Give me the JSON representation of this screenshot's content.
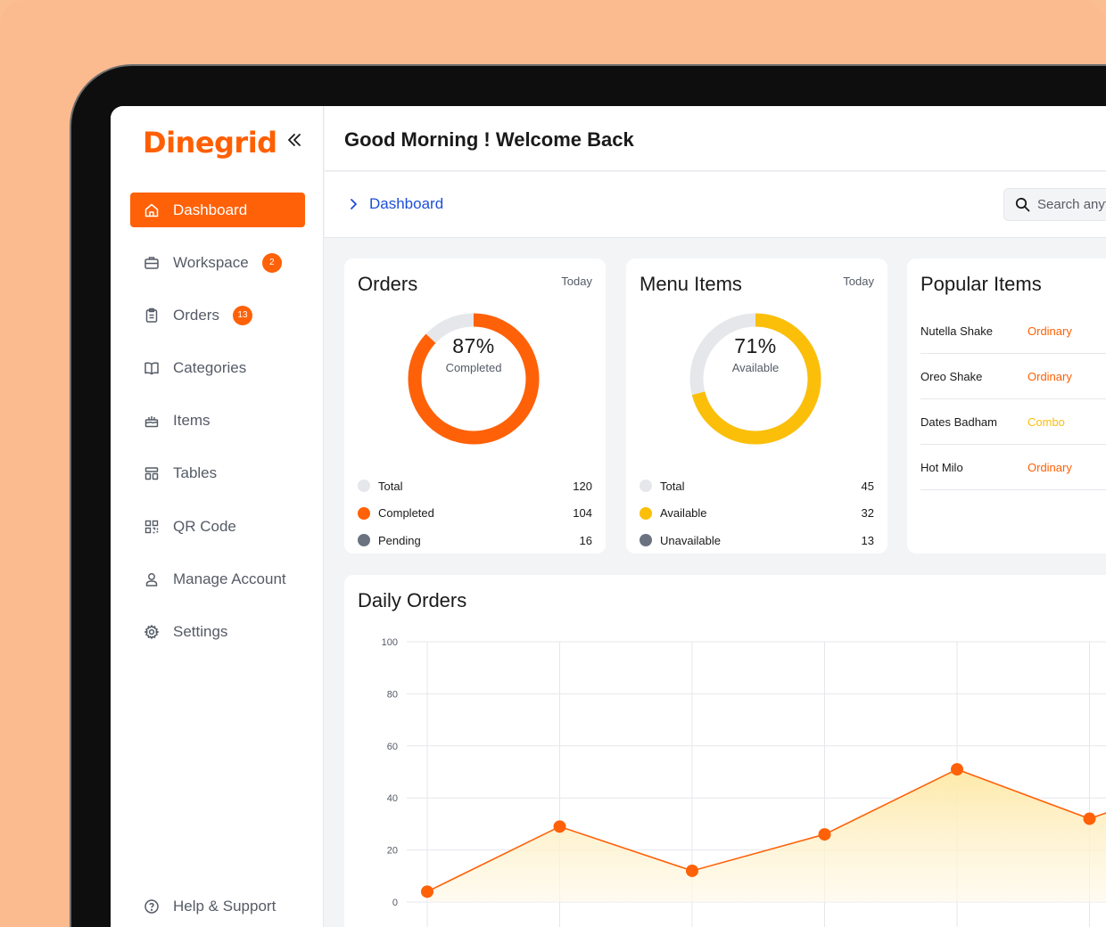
{
  "app": {
    "logo_text": "Dinegrid",
    "brand_color": "#ff6108"
  },
  "sidebar": {
    "items": [
      {
        "label": "Dashboard",
        "icon": "home-icon",
        "active": true
      },
      {
        "label": "Workspace",
        "icon": "briefcase-icon",
        "badge": "2"
      },
      {
        "label": "Orders",
        "icon": "clipboard-icon",
        "badge": "13"
      },
      {
        "label": "Categories",
        "icon": "book-icon"
      },
      {
        "label": "Items",
        "icon": "cake-icon"
      },
      {
        "label": "Tables",
        "icon": "table-icon"
      },
      {
        "label": "QR Code",
        "icon": "qr-code-icon"
      },
      {
        "label": "Manage Account",
        "icon": "user-icon"
      },
      {
        "label": "Settings",
        "icon": "gear-icon"
      }
    ],
    "help_label": "Help & Support"
  },
  "header": {
    "greeting": "Good Morning ! Welcome Back"
  },
  "subbar": {
    "breadcrumb": "Dashboard",
    "search_placeholder": "Search anything"
  },
  "orders_card": {
    "title": "Orders",
    "period": "Today",
    "percent_label": "87%",
    "percent_value": 87,
    "sub_label": "Completed",
    "legend": [
      {
        "label": "Total",
        "value": "120",
        "color": "#e5e7eb"
      },
      {
        "label": "Completed",
        "value": "104",
        "color": "#ff6108"
      },
      {
        "label": "Pending",
        "value": "16",
        "color": "#6b7280"
      }
    ]
  },
  "menu_card": {
    "title": "Menu Items",
    "period": "Today",
    "percent_label": "71%",
    "percent_value": 71,
    "sub_label": "Available",
    "legend": [
      {
        "label": "Total",
        "value": "45",
        "color": "#e5e7eb"
      },
      {
        "label": "Available",
        "value": "32",
        "color": "#fbbf0a"
      },
      {
        "label": "Unavailable",
        "value": "13",
        "color": "#6b7280"
      }
    ]
  },
  "popular_card": {
    "title": "Popular Items",
    "items": [
      {
        "name": "Nutella Shake",
        "tag": "Ordinary",
        "tag_color": "#ff5f00"
      },
      {
        "name": "Oreo Shake",
        "tag": "Ordinary",
        "tag_color": "#ff5f00"
      },
      {
        "name": "Dates Badham",
        "tag": "Combo",
        "tag_color": "#fbbf0a"
      },
      {
        "name": "Hot Milo",
        "tag": "Ordinary",
        "tag_color": "#ff5f00"
      }
    ]
  },
  "chart_data": {
    "type": "area",
    "title": "Daily Orders",
    "xlabel": "",
    "ylabel": "",
    "ylim": [
      0,
      100
    ],
    "yticks": [
      "0",
      "20",
      "40",
      "60",
      "80",
      "100"
    ],
    "series": [
      {
        "values": [
          4,
          29,
          12,
          26,
          51,
          32
        ]
      }
    ],
    "line_color": "#ff6108",
    "fill_color": "#fde9a8",
    "grid": true
  }
}
